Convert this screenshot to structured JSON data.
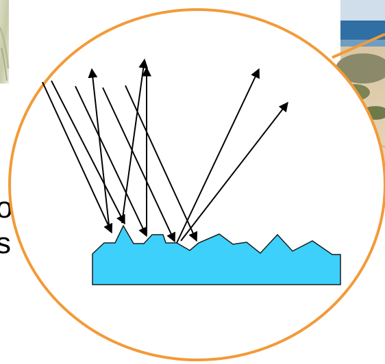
{
  "background_photos": {
    "left_photo": "grass-photo",
    "right_photo": "beach-dune-photo"
  },
  "colors": {
    "magnifier_ring": "#f29a38",
    "surface_fill": "#3cd0fa",
    "surface_stroke": "#1a1a1a",
    "ray_color": "#000000",
    "sea": "#2f6fa3",
    "sky": "#c9dbe9",
    "sand": "#e3d2b4",
    "shrub": "#6f7a4a"
  },
  "edge_text": {
    "left_fragment_1": "o",
    "left_fragment_2": "s"
  }
}
